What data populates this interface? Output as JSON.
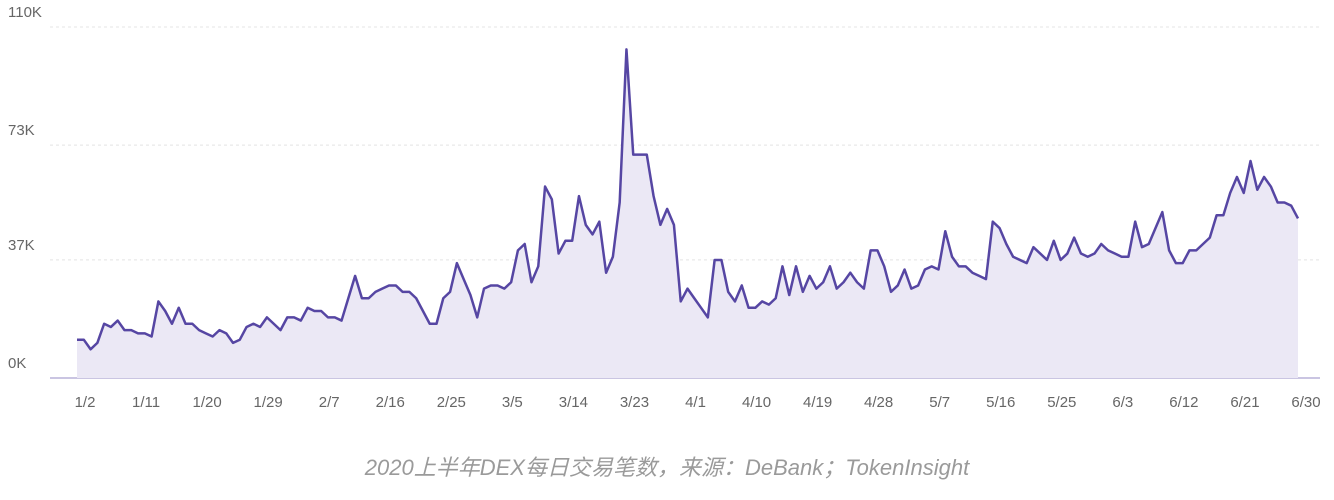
{
  "chart_data": {
    "type": "area",
    "caption": "2020上半年DEX每日交易笔数，来源：DeBank；TokenInsight",
    "color": "#5646a3",
    "fill": "#ebe8f5",
    "grid": true,
    "ylim": [
      0,
      110000
    ],
    "yticks": [
      {
        "value": 0,
        "label": "0K"
      },
      {
        "value": 37000,
        "label": "37K"
      },
      {
        "value": 73000,
        "label": "73K"
      },
      {
        "value": 110000,
        "label": "110K"
      }
    ],
    "categories": [
      "1/2",
      null,
      null,
      null,
      null,
      null,
      null,
      null,
      null,
      "1/11",
      null,
      null,
      null,
      null,
      null,
      null,
      null,
      null,
      "1/20",
      null,
      null,
      null,
      null,
      null,
      null,
      null,
      null,
      "1/29",
      null,
      null,
      null,
      null,
      null,
      null,
      null,
      null,
      "2/7",
      null,
      null,
      null,
      null,
      null,
      null,
      null,
      null,
      "2/16",
      null,
      null,
      null,
      null,
      null,
      null,
      null,
      null,
      "2/25",
      null,
      null,
      null,
      null,
      null,
      null,
      null,
      null,
      "3/5",
      null,
      null,
      null,
      null,
      null,
      null,
      null,
      null,
      "3/14",
      null,
      null,
      null,
      null,
      null,
      null,
      null,
      null,
      "3/23",
      null,
      null,
      null,
      null,
      null,
      null,
      null,
      null,
      "4/1",
      null,
      null,
      null,
      null,
      null,
      null,
      null,
      null,
      "4/10",
      null,
      null,
      null,
      null,
      null,
      null,
      null,
      null,
      "4/19",
      null,
      null,
      null,
      null,
      null,
      null,
      null,
      null,
      "4/28",
      null,
      null,
      null,
      null,
      null,
      null,
      null,
      null,
      "5/7",
      null,
      null,
      null,
      null,
      null,
      null,
      null,
      null,
      "5/16",
      null,
      null,
      null,
      null,
      null,
      null,
      null,
      null,
      "5/25",
      null,
      null,
      null,
      null,
      null,
      null,
      null,
      null,
      "6/3",
      null,
      null,
      null,
      null,
      null,
      null,
      null,
      null,
      "6/12",
      null,
      null,
      null,
      null,
      null,
      null,
      null,
      null,
      "6/21",
      null,
      null,
      null,
      null,
      null,
      null,
      null,
      null,
      "6/30"
    ],
    "values": [
      12000,
      12000,
      9000,
      11000,
      17000,
      16000,
      18000,
      15000,
      15000,
      14000,
      14000,
      13000,
      24000,
      21000,
      17000,
      22000,
      17000,
      17000,
      15000,
      14000,
      13000,
      15000,
      14000,
      11000,
      12000,
      16000,
      17000,
      16000,
      19000,
      17000,
      15000,
      19000,
      19000,
      18000,
      22000,
      21000,
      21000,
      19000,
      19000,
      18000,
      25000,
      32000,
      25000,
      25000,
      27000,
      28000,
      29000,
      29000,
      27000,
      27000,
      25000,
      21000,
      17000,
      17000,
      25000,
      27000,
      36000,
      31000,
      26000,
      19000,
      28000,
      29000,
      29000,
      28000,
      30000,
      40000,
      42000,
      30000,
      35000,
      60000,
      56000,
      39000,
      43000,
      43000,
      57000,
      48000,
      45000,
      49000,
      33000,
      38000,
      55000,
      103000,
      70000,
      70000,
      70000,
      57000,
      48000,
      53000,
      48000,
      24000,
      28000,
      25000,
      22000,
      19000,
      37000,
      37000,
      27000,
      24000,
      29000,
      22000,
      22000,
      24000,
      23000,
      25000,
      35000,
      26000,
      35000,
      27000,
      32000,
      28000,
      30000,
      35000,
      28000,
      30000,
      33000,
      30000,
      28000,
      40000,
      40000,
      35000,
      27000,
      29000,
      34000,
      28000,
      29000,
      34000,
      35000,
      34000,
      46000,
      38000,
      35000,
      35000,
      33000,
      32000,
      31000,
      49000,
      47000,
      42000,
      38000,
      37000,
      36000,
      41000,
      39000,
      37000,
      43000,
      37000,
      39000,
      44000,
      39000,
      38000,
      39000,
      42000,
      40000,
      39000,
      38000,
      38000,
      49000,
      41000,
      42000,
      47000,
      52000,
      40000,
      36000,
      36000,
      40000,
      40000,
      42000,
      44000,
      51000,
      51000,
      58000,
      63000,
      58000,
      68000,
      59000,
      63000,
      60000,
      55000,
      55000,
      54000,
      50000
    ]
  }
}
